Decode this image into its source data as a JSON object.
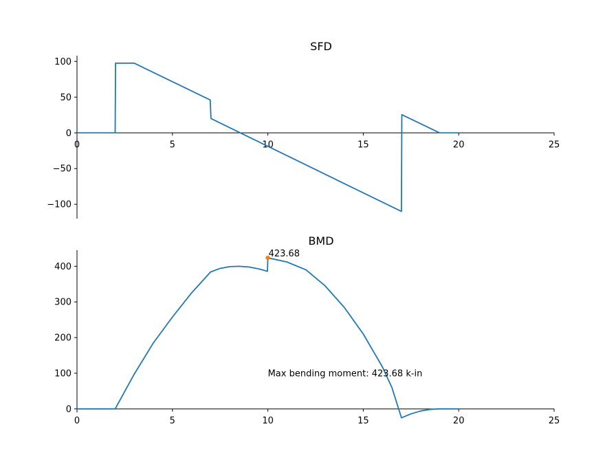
{
  "chart_data": [
    {
      "type": "line",
      "title": "SFD",
      "xlabel": "",
      "ylabel": "",
      "xlim": [
        0,
        25
      ],
      "ylim": [
        -120,
        108
      ],
      "xticks": [
        0,
        5,
        10,
        15,
        20,
        25
      ],
      "xtick_labels": [
        "0",
        "5",
        "10",
        "15",
        "20",
        "25"
      ],
      "yticks": [
        100,
        50,
        0,
        -50,
        -100
      ],
      "ytick_labels": [
        "100",
        "50",
        "0",
        "−50",
        "−100"
      ],
      "x_axis_at": 0,
      "grid": false,
      "series": [
        {
          "color": "#1f77b4",
          "points": [
            [
              0,
              0
            ],
            [
              2,
              0
            ],
            [
              2.02,
              97.5
            ],
            [
              3,
              97.5
            ],
            [
              6.98,
              46
            ],
            [
              7.02,
              20
            ],
            [
              17,
              -110
            ],
            [
              17.02,
              25.5
            ],
            [
              19,
              0
            ],
            [
              20,
              0
            ]
          ]
        }
      ]
    },
    {
      "type": "line",
      "title": "BMD",
      "xlabel": "",
      "ylabel": "",
      "xlim": [
        0,
        25
      ],
      "ylim": [
        -10,
        445
      ],
      "xticks": [
        0,
        5,
        10,
        15,
        20,
        25
      ],
      "xtick_labels": [
        "0",
        "5",
        "10",
        "15",
        "20",
        "25"
      ],
      "yticks": [
        400,
        300,
        200,
        100,
        0
      ],
      "ytick_labels": [
        "400",
        "300",
        "200",
        "100",
        "0"
      ],
      "x_axis_at": 0,
      "grid": false,
      "series": [
        {
          "color": "#1f77b4",
          "points": [
            [
              0,
              0
            ],
            [
              2,
              0
            ],
            [
              3,
              97.5
            ],
            [
              4,
              185
            ],
            [
              5,
              257.5
            ],
            [
              6,
              325
            ],
            [
              7,
              384
            ],
            [
              7.5,
              394
            ],
            [
              8,
              399
            ],
            [
              8.5,
              400
            ],
            [
              9,
              398
            ],
            [
              9.5,
              393
            ],
            [
              9.98,
              386
            ],
            [
              10,
              423.68
            ],
            [
              11,
              412
            ],
            [
              12,
              390
            ],
            [
              13,
              345
            ],
            [
              14,
              285
            ],
            [
              15,
              210
            ],
            [
              16,
              118
            ],
            [
              16.5,
              60
            ],
            [
              17,
              -25
            ],
            [
              17.5,
              -14
            ],
            [
              18,
              -6
            ],
            [
              18.5,
              -1.5
            ],
            [
              19,
              0
            ],
            [
              20,
              0
            ]
          ]
        }
      ],
      "marker": {
        "x": 10,
        "y": 423.68,
        "label": "423.68",
        "color": "#ff7f0e"
      },
      "annotation": {
        "text": "Max bending moment: 423.68 k-in",
        "x": 10,
        "y": 100
      }
    }
  ]
}
